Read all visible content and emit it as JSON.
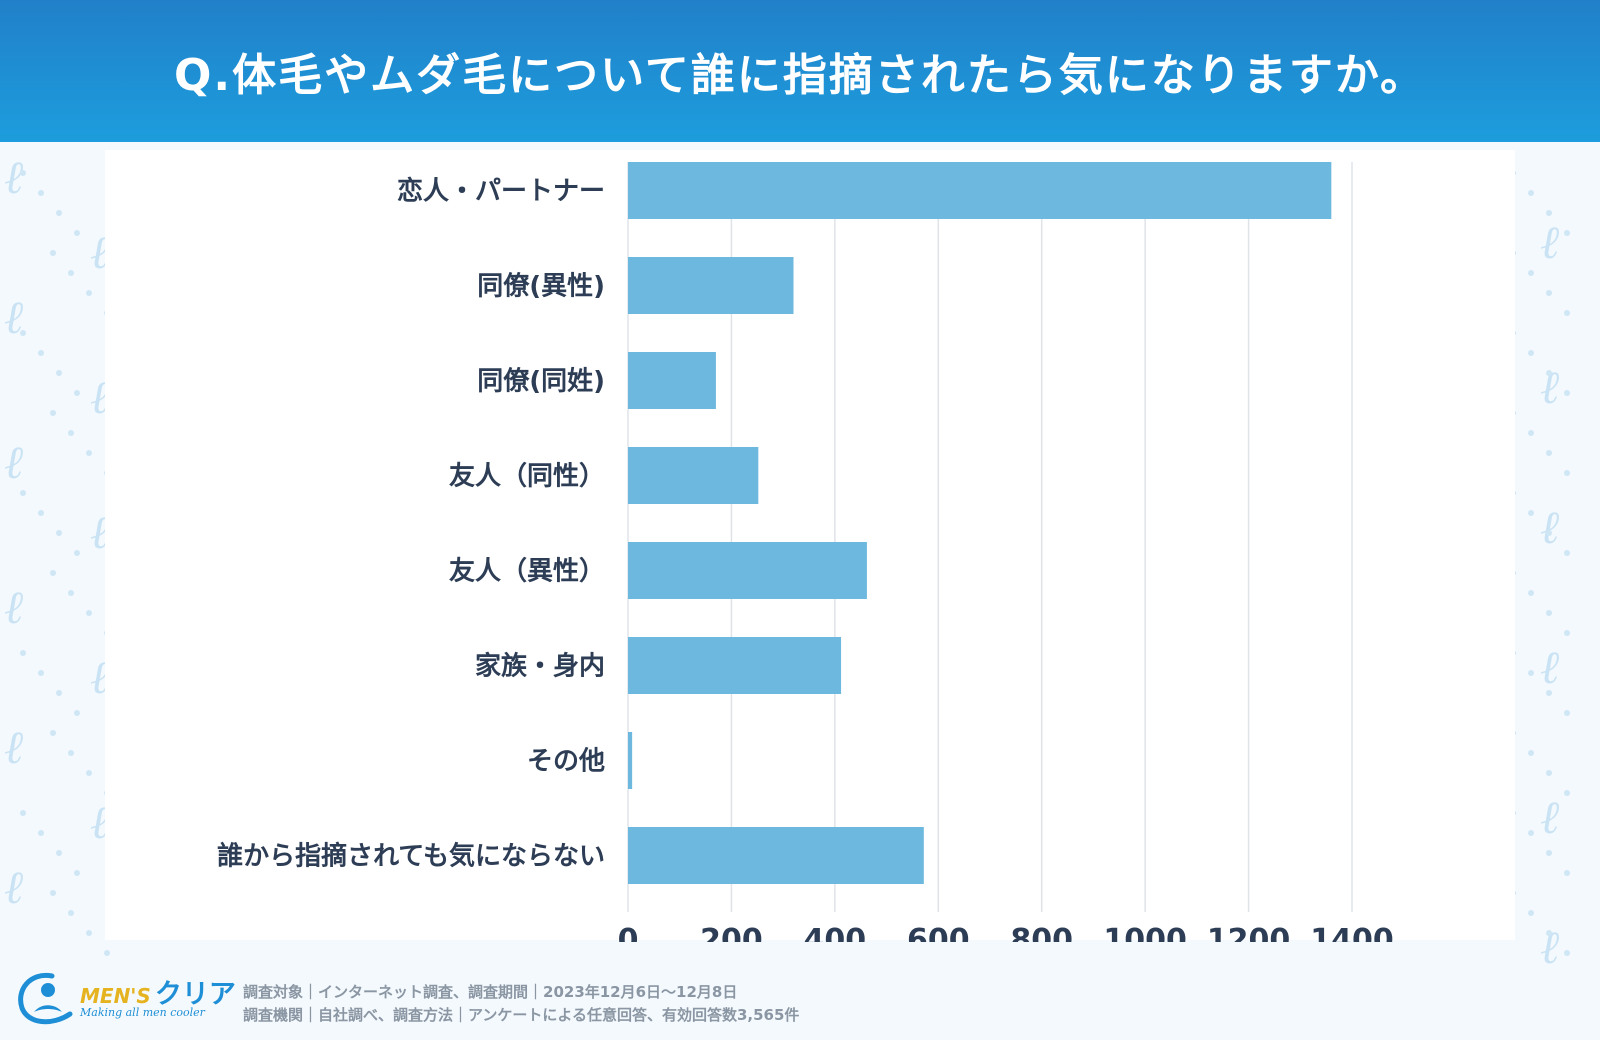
{
  "header": {
    "question": "Q.体毛やムダ毛について誰に指摘されたら気になりますか。"
  },
  "chart_data": {
    "type": "bar",
    "orientation": "horizontal",
    "categories": [
      "恋人・パートナー",
      "同僚(異性)",
      "同僚(同姓)",
      "友人（同性）",
      "友人（異性）",
      "家族・身内",
      "その他",
      "誰から指摘されても気にならない"
    ],
    "values": [
      1360,
      320,
      170,
      252,
      462,
      412,
      8,
      572
    ],
    "xlim": [
      0,
      1400
    ],
    "xticks": [
      0,
      200,
      400,
      600,
      800,
      1000,
      1200,
      1400
    ],
    "grid": true,
    "bar_color": "#6cb8de",
    "title": "Q.体毛やムダ毛について誰に指摘されたら気になりますか。"
  },
  "footer": {
    "brand_en": "MEN'S",
    "brand_kana": "クリア",
    "tagline": "Making all men cooler",
    "survey_line1": "調査対象｜インターネット調査、調査期間｜2023年12月6日〜12月8日",
    "survey_line2": "調査機関｜自社調べ、調査方法｜アンケートによる任意回答、有効回答数3,565件"
  },
  "colors": {
    "header_top": "#2180c9",
    "header_bottom": "#1d9ddd",
    "bar": "#6cb8de",
    "text": "#2d3d55",
    "grid": "#dfe3e8"
  }
}
